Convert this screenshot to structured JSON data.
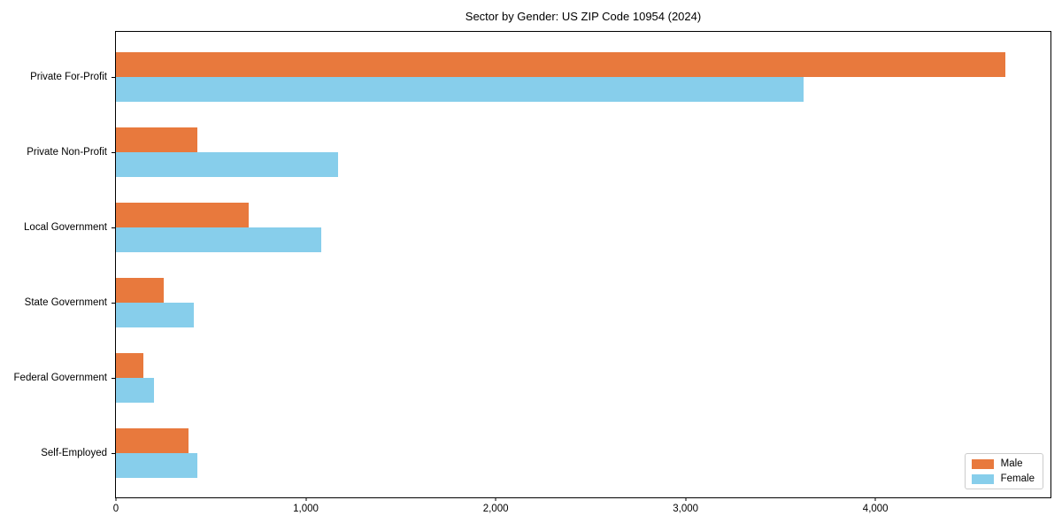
{
  "chart_data": {
    "type": "bar",
    "orientation": "horizontal",
    "title": "Sector by Gender: US ZIP Code 10954 (2024)",
    "categories": [
      "Private For-Profit",
      "Private Non-Profit",
      "Local Government",
      "State Government",
      "Federal Government",
      "Self-Employed"
    ],
    "series": [
      {
        "name": "Male",
        "color": "#e8793d",
        "values": [
          4685,
          430,
          700,
          250,
          145,
          380
        ]
      },
      {
        "name": "Female",
        "color": "#87ceeb",
        "values": [
          3620,
          1170,
          1080,
          410,
          200,
          430
        ]
      }
    ],
    "xlabel": "",
    "ylabel": "",
    "xlim": [
      0,
      4922
    ],
    "xticks": [
      0,
      1000,
      2000,
      3000,
      4000
    ],
    "xtick_labels": [
      "0",
      "1,000",
      "2,000",
      "3,000",
      "4,000"
    ],
    "grid": false,
    "legend": {
      "position": "lower right",
      "entries": [
        "Male",
        "Female"
      ]
    },
    "colors": {
      "spine": "#000000",
      "background": "#ffffff",
      "text": "#000000",
      "legend_border": "#cccccc"
    }
  }
}
